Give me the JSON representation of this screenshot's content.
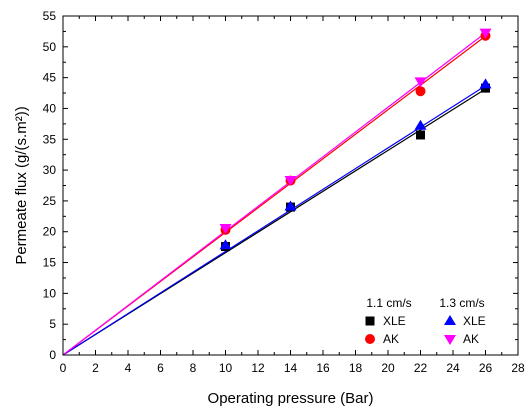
{
  "chart_data": {
    "type": "scatter",
    "xlabel": "Operating pressure (Bar)",
    "ylabel": "Permeate flux (g/(s.m²))",
    "xlim": [
      0,
      28
    ],
    "ylim": [
      0,
      55
    ],
    "xticks": [
      "0",
      "2",
      "4",
      "6",
      "8",
      "10",
      "12",
      "14",
      "16",
      "18",
      "20",
      "22",
      "24",
      "26",
      "28"
    ],
    "yticks": [
      "0",
      "5",
      "10",
      "15",
      "20",
      "25",
      "30",
      "35",
      "40",
      "45",
      "50",
      "55"
    ],
    "legend_placement": "bottom-right",
    "legend_groups": [
      "1.1 cm/s",
      "1.3 cm/s"
    ],
    "series": [
      {
        "name": "XLE",
        "group": "1.1 cm/s",
        "marker": "square",
        "color": "#000000",
        "fit_slope": 1.66,
        "x": [
          10,
          14,
          22,
          26
        ],
        "y": [
          17.6,
          24.0,
          35.7,
          43.3
        ]
      },
      {
        "name": "AK",
        "group": "1.1 cm/s",
        "marker": "circle",
        "color": "#ff0000",
        "fit_slope": 1.99,
        "x": [
          10,
          14,
          22,
          26
        ],
        "y": [
          20.3,
          28.3,
          42.8,
          51.8
        ]
      },
      {
        "name": "XLE",
        "group": "1.3 cm/s",
        "marker": "triangle-up",
        "color": "#0000ff",
        "fit_slope": 1.68,
        "x": [
          10,
          14,
          22,
          26
        ],
        "y": [
          17.8,
          24.1,
          37.2,
          43.9
        ]
      },
      {
        "name": "AK",
        "group": "1.3 cm/s",
        "marker": "triangle-down",
        "color": "#ff00ff",
        "fit_slope": 2.01,
        "x": [
          10,
          14,
          22,
          26
        ],
        "y": [
          20.6,
          28.4,
          44.4,
          52.3
        ]
      }
    ]
  }
}
